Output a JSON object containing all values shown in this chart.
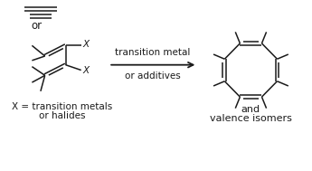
{
  "bg_color": "#ffffff",
  "line_color": "#1a1a1a",
  "text_color": "#1a1a1a",
  "arrow_text1": "transition metal",
  "arrow_text2": "or additives",
  "bottom_text1": "X = transition metals",
  "bottom_text2": "or halides",
  "right_text1": "and",
  "right_text2": "valence isomers",
  "or_text": "or",
  "x_label": "X",
  "font_size": 7.5,
  "lw": 1.1
}
